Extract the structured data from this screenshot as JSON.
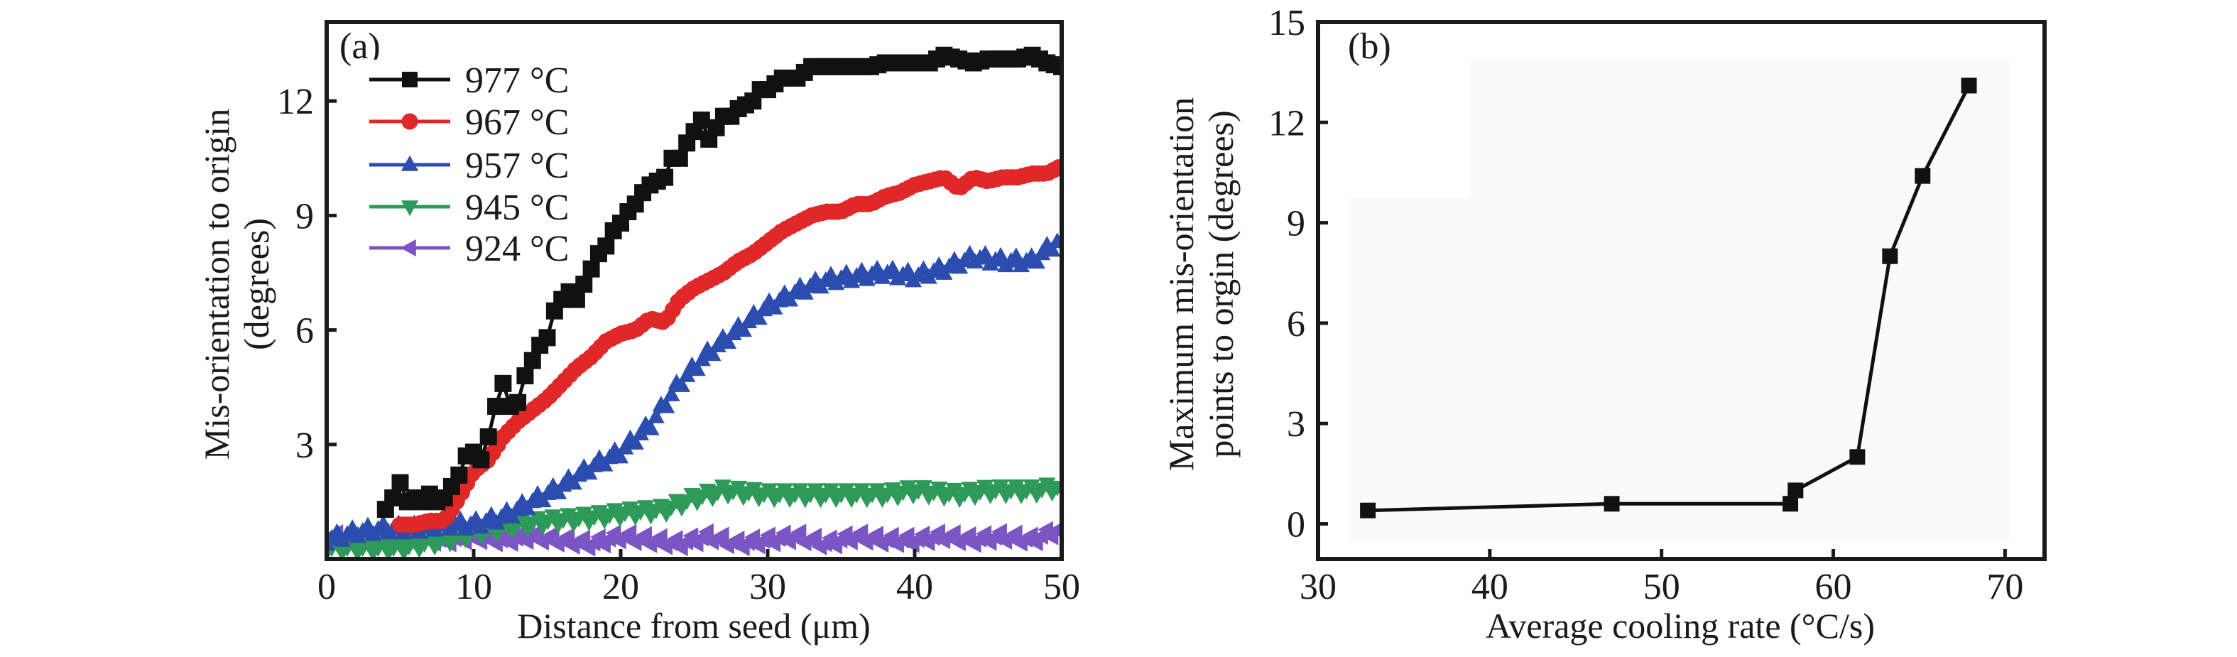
{
  "chart_data": [
    {
      "id": "a",
      "type": "line",
      "panel_label": "(a)",
      "title": "",
      "xlabel": "Distance from seed (μm)",
      "ylabel_lines": [
        "Mis-orientation to origin",
        "(degrees)"
      ],
      "xlim": [
        0,
        50
      ],
      "ylim": [
        0,
        14.07
      ],
      "xticks": [
        0,
        10,
        20,
        30,
        40,
        50
      ],
      "yticks": [
        3,
        6,
        9,
        12
      ],
      "grid": false,
      "legend_position": "top-left",
      "series": [
        {
          "name": "977 °C",
          "color": "#111111",
          "marker": "square",
          "x": [
            4,
            4.5,
            5,
            5.5,
            6,
            6.5,
            7,
            7.5,
            8,
            8.5,
            9,
            9.5,
            10,
            10.5,
            11,
            11.5,
            12,
            12.5,
            13,
            13.5,
            14,
            14.5,
            15,
            15.5,
            16,
            16.5,
            17,
            17.5,
            18,
            18.5,
            19,
            19.5,
            20,
            20.5,
            21,
            21.5,
            22,
            22.5,
            23,
            23.5,
            24,
            24.5,
            25,
            25.5,
            26,
            26.5,
            27,
            27.5,
            28,
            28.5,
            29,
            29.5,
            30,
            31,
            32,
            33,
            34,
            35,
            36,
            37,
            38,
            39,
            40,
            41,
            42,
            43,
            44,
            45,
            46,
            47,
            48,
            49,
            50
          ],
          "y": [
            1.3,
            1.6,
            2.0,
            1.5,
            1.6,
            1.5,
            1.7,
            1.5,
            1.6,
            1.9,
            2.2,
            2.7,
            2.8,
            2.6,
            3.2,
            4.0,
            4.6,
            4.0,
            4.1,
            4.8,
            5.2,
            5.6,
            5.8,
            6.5,
            6.8,
            7.0,
            6.8,
            7.2,
            7.6,
            8.0,
            8.2,
            8.6,
            8.8,
            9.1,
            9.3,
            9.6,
            9.8,
            9.9,
            10.0,
            10.5,
            10.5,
            10.9,
            11.2,
            11.5,
            11.0,
            11.3,
            11.6,
            11.6,
            11.8,
            11.9,
            12.0,
            12.3,
            12.3,
            12.6,
            12.6,
            12.9,
            12.9,
            12.9,
            12.9,
            12.9,
            13.0,
            13.0,
            13.0,
            13.0,
            13.2,
            13.1,
            13.0,
            13.1,
            13.1,
            13.1,
            13.2,
            13.0,
            12.9
          ]
        },
        {
          "name": "967 °C",
          "color": "#e02828",
          "marker": "circle",
          "x": [
            5,
            6,
            7,
            8,
            9,
            10,
            11,
            12,
            13,
            14,
            15,
            16,
            17,
            18,
            19,
            20,
            21,
            22,
            23,
            24,
            25,
            26,
            27,
            28,
            29,
            30,
            31,
            32,
            33,
            34,
            35,
            36,
            37,
            38,
            39,
            40,
            41,
            42,
            43,
            44,
            45,
            46,
            47,
            48,
            49,
            50
          ],
          "y": [
            0.9,
            0.9,
            1.0,
            1.0,
            1.6,
            2.3,
            2.6,
            3.2,
            3.6,
            3.9,
            4.2,
            4.6,
            5.0,
            5.3,
            5.7,
            5.9,
            6.0,
            6.3,
            6.2,
            6.8,
            7.1,
            7.3,
            7.5,
            7.8,
            8.0,
            8.3,
            8.6,
            8.8,
            9.0,
            9.1,
            9.1,
            9.3,
            9.3,
            9.5,
            9.6,
            9.8,
            9.9,
            10.0,
            9.7,
            10.0,
            9.9,
            10.0,
            10.0,
            10.1,
            10.1,
            10.3
          ]
        },
        {
          "name": "957 °C",
          "color": "#2b4db0",
          "marker": "triangle-up",
          "x": [
            0,
            2,
            4,
            6,
            8,
            10,
            12,
            14,
            16,
            18,
            20,
            22,
            24,
            26,
            28,
            30,
            32,
            34,
            36,
            38,
            40,
            42,
            44,
            46,
            48,
            50
          ],
          "y": [
            0.5,
            0.7,
            0.8,
            0.8,
            0.9,
            0.9,
            1.1,
            1.5,
            1.9,
            2.4,
            2.8,
            3.5,
            4.6,
            5.4,
            6.0,
            6.6,
            7.0,
            7.3,
            7.4,
            7.5,
            7.4,
            7.6,
            7.9,
            7.8,
            7.8,
            8.4
          ]
        },
        {
          "name": "945 °C",
          "color": "#2e9a5a",
          "marker": "triangle-down",
          "x": [
            0,
            3,
            5,
            8,
            10,
            13,
            15,
            18,
            20,
            23,
            25,
            27,
            30,
            33,
            35,
            38,
            40,
            43,
            45,
            48,
            50
          ],
          "y": [
            0.3,
            0.3,
            0.3,
            0.5,
            0.7,
            0.9,
            1.0,
            1.1,
            1.2,
            1.3,
            1.6,
            1.8,
            1.7,
            1.7,
            1.7,
            1.7,
            1.8,
            1.7,
            1.8,
            1.8,
            1.9
          ]
        },
        {
          "name": "924 °C",
          "color": "#7b55c4",
          "marker": "triangle-left",
          "x": [
            0,
            2,
            4,
            6,
            8,
            10,
            12,
            14,
            16,
            18,
            20,
            22,
            24,
            26,
            28,
            30,
            32,
            34,
            36,
            38,
            40,
            42,
            44,
            46,
            48,
            50
          ],
          "y": [
            0.6,
            0.5,
            0.6,
            0.6,
            0.5,
            0.6,
            0.5,
            0.6,
            0.5,
            0.4,
            0.6,
            0.5,
            0.4,
            0.6,
            0.4,
            0.5,
            0.6,
            0.4,
            0.6,
            0.5,
            0.5,
            0.6,
            0.5,
            0.6,
            0.5,
            0.8
          ]
        }
      ]
    },
    {
      "id": "b",
      "type": "line",
      "panel_label": "(b)",
      "title": "",
      "xlabel": "Average cooling rate (°C/s)",
      "ylabel_lines": [
        "Maximum mis-orientation",
        "points to orgin (degrees)"
      ],
      "xlim": [
        30,
        72.3
      ],
      "ylim": [
        -1.05,
        15
      ],
      "xticks": [
        30,
        40,
        50,
        60,
        70
      ],
      "yticks": [
        0,
        3,
        6,
        9,
        12,
        15
      ],
      "grid": false,
      "series": [
        {
          "name": "Maximum mis-orientation",
          "color": "#111111",
          "marker": "square",
          "x": [
            32.9,
            47.1,
            57.5,
            57.8,
            61.4,
            63.3,
            65.2,
            67.9
          ],
          "y": [
            0.4,
            0.6,
            0.6,
            1.0,
            2.0,
            8.0,
            10.4,
            13.1
          ]
        }
      ]
    }
  ]
}
